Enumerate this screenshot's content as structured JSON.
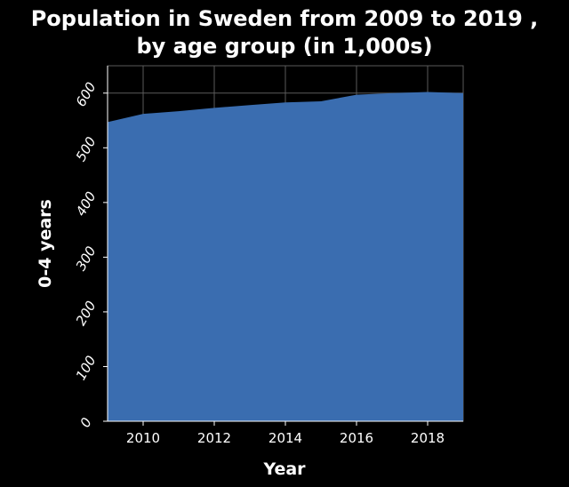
{
  "chart_data": {
    "type": "area",
    "title_line1": "Population in Sweden from 2009 to 2019 ,",
    "title_line2": "by age group (in 1,000s)",
    "xlabel": "Year",
    "ylabel": "0-4 years",
    "x": [
      2009,
      2010,
      2011,
      2012,
      2013,
      2014,
      2015,
      2016,
      2017,
      2018,
      2019
    ],
    "values": [
      547,
      562,
      567,
      573,
      578,
      583,
      585,
      597,
      600,
      602,
      600
    ],
    "xlim": [
      2009,
      2019
    ],
    "ylim": [
      0,
      650
    ],
    "xticks": [
      2010,
      2012,
      2014,
      2016,
      2018
    ],
    "yticks": [
      0,
      100,
      200,
      300,
      400,
      500,
      600
    ],
    "grid": true,
    "colors": {
      "background": "#000000",
      "fill": "#3a6db0",
      "text": "#ffffff",
      "grid": "#5a5a5a"
    }
  }
}
